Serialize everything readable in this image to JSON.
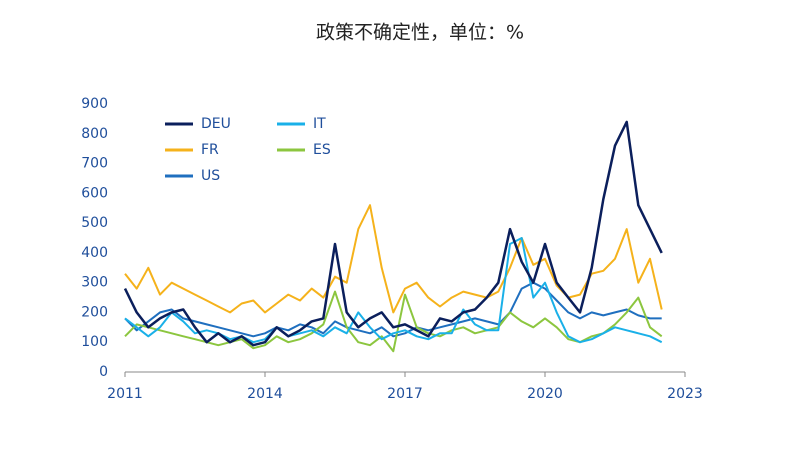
{
  "chart_data": {
    "type": "line",
    "title": "政策不确定性，单位：%",
    "x": [
      2011,
      2011.25,
      2011.5,
      2011.75,
      2012,
      2012.25,
      2012.5,
      2012.75,
      2013,
      2013.25,
      2013.5,
      2013.75,
      2014,
      2014.25,
      2014.5,
      2014.75,
      2015,
      2015.25,
      2015.5,
      2015.75,
      2016,
      2016.25,
      2016.5,
      2016.75,
      2017,
      2017.25,
      2017.5,
      2017.75,
      2018,
      2018.25,
      2018.5,
      2018.75,
      2019,
      2019.25,
      2019.5,
      2019.75,
      2020,
      2020.25,
      2020.5,
      2020.75,
      2021,
      2021.25,
      2021.5,
      2021.75,
      2022,
      2022.25,
      2022.5
    ],
    "series": [
      {
        "name": "DEU",
        "color": "#0b1f5c",
        "values": [
          280,
          200,
          150,
          180,
          200,
          210,
          150,
          100,
          130,
          100,
          120,
          90,
          100,
          150,
          120,
          140,
          170,
          180,
          430,
          200,
          150,
          180,
          200,
          150,
          160,
          140,
          120,
          180,
          170,
          200,
          210,
          250,
          300,
          480,
          370,
          300,
          430,
          300,
          250,
          200,
          350,
          580,
          760,
          840,
          560,
          480,
          400
        ]
      },
      {
        "name": "IT",
        "color": "#1ab0e8",
        "values": [
          180,
          150,
          120,
          150,
          200,
          170,
          130,
          140,
          130,
          110,
          120,
          100,
          110,
          150,
          120,
          130,
          140,
          120,
          150,
          130,
          200,
          150,
          110,
          130,
          140,
          120,
          110,
          130,
          130,
          210,
          160,
          140,
          140,
          430,
          450,
          250,
          300,
          200,
          120,
          100,
          110,
          130,
          150,
          140,
          130,
          120,
          100
        ]
      },
      {
        "name": "FR",
        "color": "#f5b21b",
        "values": [
          330,
          280,
          350,
          260,
          300,
          280,
          260,
          240,
          220,
          200,
          230,
          240,
          200,
          230,
          260,
          240,
          280,
          250,
          320,
          300,
          480,
          560,
          350,
          200,
          280,
          300,
          250,
          220,
          250,
          270,
          260,
          250,
          270,
          350,
          450,
          360,
          380,
          290,
          250,
          260,
          330,
          340,
          380,
          480,
          300,
          380,
          210
        ]
      },
      {
        "name": "ES",
        "color": "#8cc63f",
        "values": [
          120,
          160,
          150,
          140,
          130,
          120,
          110,
          100,
          90,
          100,
          110,
          80,
          90,
          120,
          100,
          110,
          130,
          160,
          270,
          150,
          100,
          90,
          120,
          70,
          260,
          150,
          130,
          120,
          140,
          150,
          130,
          140,
          150,
          200,
          170,
          150,
          180,
          150,
          110,
          100,
          120,
          130,
          160,
          200,
          250,
          150,
          120
        ]
      },
      {
        "name": "US",
        "color": "#1f6fbf",
        "values": [
          180,
          140,
          170,
          200,
          210,
          180,
          170,
          160,
          150,
          140,
          130,
          120,
          130,
          150,
          140,
          160,
          150,
          130,
          170,
          150,
          140,
          130,
          150,
          120,
          130,
          150,
          140,
          150,
          160,
          170,
          180,
          170,
          160,
          200,
          280,
          300,
          280,
          240,
          200,
          180,
          200,
          190,
          200,
          210,
          190,
          180,
          180
        ]
      }
    ],
    "xlim": [
      2011,
      2023
    ],
    "xticks": [
      2011,
      2014,
      2017,
      2020,
      2023
    ],
    "ylim": [
      0,
      900
    ],
    "yticks": [
      0,
      100,
      200,
      300,
      400,
      500,
      600,
      700,
      800,
      900
    ]
  }
}
